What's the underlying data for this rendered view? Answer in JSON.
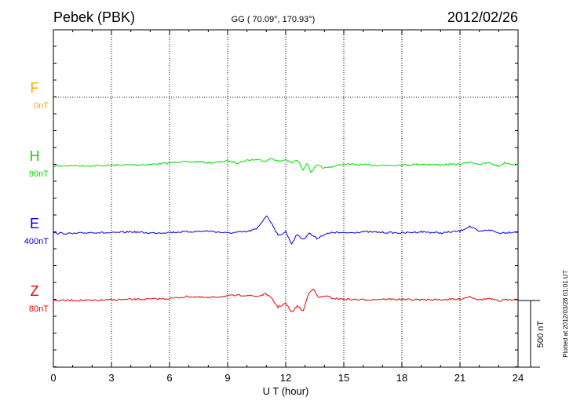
{
  "header": {
    "station": "Pebek (PBK)",
    "coords": "GG ( 70.09°, 170.93°)",
    "date": "2012/02/26"
  },
  "chart_data": {
    "type": "line",
    "xlabel": "U T (hour)",
    "xlim": [
      0,
      24
    ],
    "x_ticks": [
      "0",
      "3",
      "6",
      "9",
      "12",
      "15",
      "18",
      "21",
      "24"
    ],
    "grid": true,
    "scale_bar": {
      "label": "500 nT",
      "value": 500
    },
    "plotted_note": "Plotted at 2012/03/28 01:01 UT",
    "series": [
      {
        "name": "F",
        "offset_label": "0nT",
        "color": "#ffa500",
        "baseline_nT": 0,
        "x": [],
        "values": []
      },
      {
        "name": "H",
        "offset_label": "90nT",
        "color": "#00e000",
        "baseline_nT": 90,
        "x": [
          0,
          1,
          2,
          3,
          4,
          5,
          6,
          6.5,
          7,
          7.5,
          8,
          8.5,
          9,
          9.5,
          10,
          10.5,
          11,
          11.3,
          11.6,
          12,
          12.3,
          12.6,
          12.9,
          13.1,
          13.3,
          13.6,
          14,
          14.5,
          15,
          16,
          17,
          18,
          19,
          20,
          21,
          21.5,
          22,
          22.5,
          23,
          23.3,
          24
        ],
        "values": [
          87,
          90,
          88,
          92,
          95,
          98,
          110,
          120,
          115,
          120,
          110,
          115,
          125,
          110,
          130,
          135,
          125,
          145,
          120,
          135,
          110,
          130,
          60,
          110,
          40,
          90,
          70,
          85,
          100,
          95,
          92,
          95,
          100,
          95,
          100,
          115,
          100,
          110,
          85,
          110,
          95
        ]
      },
      {
        "name": "E",
        "offset_label": "400nT",
        "color": "#0000dd",
        "baseline_nT": 400,
        "x": [
          0,
          1,
          2,
          3,
          4,
          5,
          6,
          7,
          8,
          9,
          10,
          10.5,
          11,
          11.3,
          11.6,
          12,
          12.3,
          12.6,
          12.9,
          13.2,
          13.6,
          14,
          14.5,
          15,
          16,
          17,
          18,
          19,
          20,
          21,
          21.5,
          22,
          22.5,
          23,
          24
        ],
        "values": [
          400,
          395,
          405,
          400,
          410,
          400,
          405,
          410,
          415,
          400,
          410,
          430,
          530,
          470,
          380,
          410,
          320,
          390,
          350,
          400,
          360,
          390,
          405,
          400,
          410,
          405,
          400,
          410,
          400,
          415,
          450,
          410,
          425,
          400,
          410
        ]
      },
      {
        "name": "Z",
        "offset_label": "80nT",
        "color": "#ee0000",
        "baseline_nT": 80,
        "x": [
          0,
          1,
          2,
          3,
          4,
          5,
          6,
          7,
          8,
          9,
          10,
          10.5,
          11,
          11.3,
          11.6,
          12,
          12.3,
          12.6,
          12.9,
          13.2,
          13.4,
          13.7,
          14,
          14.5,
          15,
          16,
          17,
          18,
          19,
          20,
          21,
          21.5,
          22,
          22.5,
          23,
          23.5,
          24
        ],
        "values": [
          80,
          82,
          80,
          85,
          88,
          90,
          95,
          110,
          100,
          115,
          120,
          110,
          130,
          90,
          30,
          60,
          -10,
          40,
          0,
          140,
          170,
          100,
          115,
          95,
          90,
          85,
          90,
          88,
          85,
          87,
          90,
          110,
          85,
          95,
          75,
          90,
          85
        ]
      }
    ]
  }
}
